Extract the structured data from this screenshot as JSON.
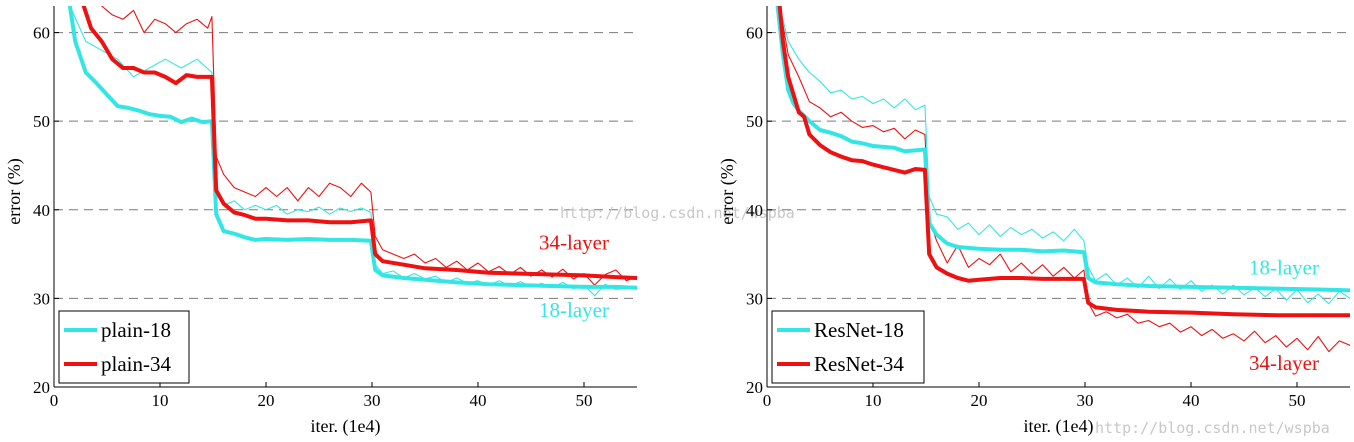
{
  "colors": {
    "cyan": "#33e6e6",
    "red": "#ee1111",
    "grid": "#7a7a7a",
    "axis": "#000000"
  },
  "chart_data": [
    {
      "type": "line",
      "xlabel": "iter. (1e4)",
      "ylabel": "error (%)",
      "xlim": [
        0,
        55
      ],
      "ylim": [
        20,
        63
      ],
      "xticks": [
        "0",
        "10",
        "20",
        "30",
        "40",
        "50"
      ],
      "yticks": [
        "20",
        "30",
        "40",
        "50",
        "60"
      ],
      "grid": "horizontal-dashed",
      "legend_position": "bottom-left",
      "annotations": [
        {
          "text": "34-layer",
          "color": "red",
          "x": 50,
          "y": 36.3
        },
        {
          "text": "18-layer",
          "color": "cyan",
          "x": 50,
          "y": 28.7
        }
      ],
      "series": [
        {
          "name": "plain-18",
          "color": "cyan",
          "role": "val",
          "x": [
            1.5,
            2,
            3,
            4,
            5,
            6,
            7,
            8,
            9,
            10,
            11,
            12,
            13,
            14,
            14.9,
            15.3,
            16,
            17,
            18,
            19,
            20,
            22,
            24,
            26,
            28,
            29.9,
            30.3,
            31,
            33,
            35,
            38,
            41,
            44,
            47,
            50,
            53,
            55
          ],
          "y": [
            63,
            59,
            55.5,
            54.3,
            53,
            51.7,
            51.5,
            51.2,
            50.8,
            50.6,
            50.5,
            49.9,
            50.3,
            49.9,
            50,
            39.5,
            37.6,
            37.3,
            36.9,
            36.6,
            36.7,
            36.6,
            36.7,
            36.6,
            36.6,
            36.5,
            33.2,
            32.6,
            32.3,
            32.1,
            31.8,
            31.6,
            31.5,
            31.4,
            31.3,
            31.3,
            31.2
          ]
        },
        {
          "name": "plain-34",
          "color": "red",
          "role": "val",
          "x": [
            2.8,
            3.5,
            4.5,
            5.5,
            6.5,
            7.5,
            8.5,
            9.5,
            10.5,
            11.5,
            12.5,
            13.5,
            14.9,
            15.3,
            16,
            17,
            18,
            19,
            20,
            22,
            24,
            26,
            28,
            29.9,
            30.3,
            31,
            33,
            35,
            38,
            41,
            44,
            47,
            50,
            53,
            55
          ],
          "y": [
            63,
            60.5,
            59,
            57,
            56,
            56,
            55.5,
            55.5,
            55,
            54.3,
            55.2,
            55,
            55,
            42.2,
            40.7,
            39.7,
            39.4,
            39,
            39,
            38.8,
            38.8,
            38.6,
            38.6,
            38.8,
            35,
            34.2,
            33.8,
            33.4,
            33.2,
            32.9,
            32.8,
            32.7,
            32.6,
            32.4,
            32.3
          ]
        },
        {
          "role": "train",
          "color": "cyan",
          "x": [
            1.5,
            3,
            4.5,
            6,
            7.5,
            9,
            10.5,
            12,
            13.5,
            14.9,
            15.3,
            16,
            17,
            18,
            19,
            20,
            21,
            22,
            23,
            24,
            25,
            26,
            27,
            28,
            29,
            29.9,
            30.3,
            31,
            32,
            33,
            34,
            35,
            36,
            37,
            38,
            39,
            40,
            41,
            42,
            43,
            44,
            45,
            46,
            47,
            48,
            49,
            50,
            51,
            52,
            53,
            54,
            55
          ],
          "y": [
            63,
            59,
            58,
            57,
            55,
            56,
            57,
            56,
            57,
            55.5,
            42,
            40.5,
            41,
            40,
            40.5,
            40,
            40.5,
            39.5,
            40,
            39.8,
            40.3,
            39.5,
            40.2,
            39.8,
            40.2,
            39.7,
            33.8,
            32.8,
            33.1,
            32.3,
            32.8,
            32.2,
            32.5,
            31.8,
            32.3,
            31.7,
            32,
            31.5,
            32,
            31.4,
            31.9,
            31.3,
            31.7,
            31.2,
            31.8,
            31.1,
            31.5,
            30.3,
            31.6,
            31,
            31.2,
            31.3
          ]
        },
        {
          "role": "train",
          "color": "red",
          "x": [
            4.5,
            5.5,
            6.5,
            7.5,
            8.5,
            9.5,
            10.5,
            11.5,
            12.5,
            13.5,
            14.5,
            14.9,
            15.3,
            16,
            17,
            18,
            19,
            20,
            21,
            22,
            23,
            24,
            25,
            26,
            27,
            28,
            29,
            29.9,
            30.3,
            31,
            32,
            33,
            34,
            35,
            36,
            37,
            38,
            39,
            40,
            41,
            42,
            43,
            44,
            45,
            46,
            47,
            48,
            49,
            50,
            51,
            52,
            53,
            54,
            55
          ],
          "y": [
            63,
            62,
            61.5,
            62.5,
            60,
            61.5,
            61,
            60,
            61,
            61.5,
            60.5,
            61.8,
            46,
            44,
            42.5,
            42,
            41.5,
            42.5,
            41.5,
            42.5,
            41,
            42.5,
            41.5,
            43,
            42.5,
            41.5,
            43,
            42,
            37,
            35.5,
            35,
            34.5,
            35,
            34,
            34.5,
            33.5,
            34.2,
            33.2,
            34,
            33,
            33.6,
            32.7,
            33.5,
            32.5,
            33.2,
            32.4,
            33.3,
            32.2,
            32.8,
            31.5,
            32.7,
            33.2,
            32,
            32.5
          ]
        }
      ],
      "legend": [
        {
          "label": "plain-18",
          "color": "cyan"
        },
        {
          "label": "plain-34",
          "color": "red"
        }
      ]
    },
    {
      "type": "line",
      "xlabel": "iter. (1e4)",
      "ylabel": "error (%)",
      "xlim": [
        0,
        55
      ],
      "ylim": [
        20,
        63
      ],
      "xticks": [
        "0",
        "10",
        "20",
        "30",
        "40",
        "50"
      ],
      "yticks": [
        "20",
        "30",
        "40",
        "50",
        "60"
      ],
      "grid": "horizontal-dashed",
      "legend_position": "bottom-left",
      "annotations": [
        {
          "text": "18-layer",
          "color": "cyan",
          "x": 50,
          "y": 33.5
        },
        {
          "text": "34-layer",
          "color": "red",
          "x": 50,
          "y": 22.7
        }
      ],
      "series": [
        {
          "name": "ResNet-18",
          "color": "cyan",
          "role": "val",
          "x": [
            1,
            1.5,
            2,
            2.5,
            3,
            4,
            5,
            6,
            7,
            8,
            9,
            10,
            11,
            12,
            13,
            14,
            14.9,
            15.3,
            16,
            17,
            18,
            20,
            22,
            24,
            26,
            28,
            29.9,
            30.3,
            31,
            33,
            36,
            40,
            44,
            48,
            52,
            55
          ],
          "y": [
            63,
            57.5,
            53.5,
            52,
            51.2,
            50,
            49,
            48.7,
            48.3,
            47.7,
            47.5,
            47.2,
            47.1,
            47,
            46.6,
            46.7,
            46.8,
            38.5,
            37.2,
            36.2,
            35.8,
            35.6,
            35.5,
            35.5,
            35.3,
            35.4,
            35.2,
            32.3,
            31.8,
            31.6,
            31.4,
            31.3,
            31.2,
            31.1,
            31,
            30.9
          ]
        },
        {
          "name": "ResNet-34",
          "color": "red",
          "role": "val",
          "x": [
            1.2,
            1.5,
            2,
            2.5,
            3,
            3.5,
            4,
            5,
            6,
            7,
            8,
            9,
            10,
            11,
            12,
            13,
            14,
            14.9,
            15.3,
            16,
            17,
            18,
            19,
            20,
            22,
            24,
            26,
            28,
            29.9,
            30.3,
            31,
            33,
            36,
            40,
            44,
            48,
            52,
            55
          ],
          "y": [
            63,
            59,
            55,
            53,
            51,
            50.5,
            48.5,
            47.3,
            46.5,
            46,
            45.6,
            45.5,
            45.1,
            44.8,
            44.5,
            44.2,
            44.6,
            44.5,
            35,
            33.5,
            32.8,
            32.3,
            32,
            32.1,
            32.3,
            32.3,
            32.2,
            32.2,
            32.2,
            29.5,
            29,
            28.7,
            28.5,
            28.4,
            28.2,
            28.1,
            28.1,
            28.1
          ]
        },
        {
          "role": "train",
          "color": "cyan",
          "x": [
            1.2,
            2,
            3,
            4,
            5,
            6,
            7,
            8,
            9,
            10,
            11,
            12,
            13,
            14,
            14.9,
            15.3,
            16,
            17,
            18,
            19,
            20,
            21,
            22,
            23,
            24,
            25,
            26,
            27,
            28,
            29,
            29.9,
            30.3,
            31,
            32,
            33,
            34,
            35,
            36,
            37,
            38,
            39,
            40,
            41,
            42,
            43,
            44,
            45,
            46,
            47,
            48,
            49,
            50,
            51,
            52,
            53,
            54,
            55
          ],
          "y": [
            63,
            59,
            57,
            55.5,
            54.5,
            53.2,
            53.5,
            52.5,
            52.8,
            52,
            52.5,
            51.5,
            52.5,
            51.3,
            51.8,
            41.5,
            39.5,
            39.2,
            37.8,
            38.5,
            37.2,
            38.3,
            37,
            38,
            37.2,
            37.8,
            36.8,
            37.5,
            36.5,
            37.8,
            36.5,
            33.5,
            32,
            32.8,
            31.5,
            32.3,
            31.2,
            32.5,
            31.1,
            32.2,
            31,
            32,
            30.8,
            31.5,
            30.5,
            31.5,
            30.4,
            31.2,
            30.2,
            31.1,
            29.8,
            31,
            29.5,
            30.5,
            29.4,
            30.8,
            30
          ]
        },
        {
          "role": "train",
          "color": "red",
          "x": [
            1.2,
            2,
            3,
            4,
            5,
            6,
            7,
            8,
            9,
            10,
            11,
            12,
            13,
            14,
            14.9,
            15.3,
            16,
            17,
            18,
            19,
            20,
            21,
            22,
            23,
            24,
            25,
            26,
            27,
            28,
            29,
            29.9,
            30.3,
            31,
            32,
            33,
            34,
            35,
            36,
            37,
            38,
            39,
            40,
            41,
            42,
            43,
            44,
            45,
            46,
            47,
            48,
            49,
            50,
            51,
            52,
            53,
            54,
            55
          ],
          "y": [
            63,
            57.5,
            55,
            52.2,
            51.5,
            50.5,
            51,
            50,
            49.3,
            49.5,
            48.8,
            49.2,
            48,
            49,
            48.5,
            39,
            36.5,
            34,
            36,
            33.5,
            34.5,
            33.8,
            35,
            33,
            34,
            32.8,
            33.8,
            32.5,
            33.5,
            32.3,
            33.2,
            29.5,
            28,
            28.5,
            27.8,
            28.2,
            27.2,
            27.5,
            26.8,
            27.2,
            26.2,
            26.8,
            25.8,
            26.5,
            25.5,
            26,
            25.2,
            26.3,
            25,
            25.8,
            24.5,
            25.5,
            24.2,
            25.7,
            24,
            25.2,
            24.7
          ]
        }
      ],
      "legend": [
        {
          "label": "ResNet-18",
          "color": "cyan"
        },
        {
          "label": "ResNet-34",
          "color": "red"
        }
      ]
    }
  ],
  "watermarks": [
    "http://blog.csdn.net/wspba",
    "http://blog.csdn.net/wspba"
  ]
}
